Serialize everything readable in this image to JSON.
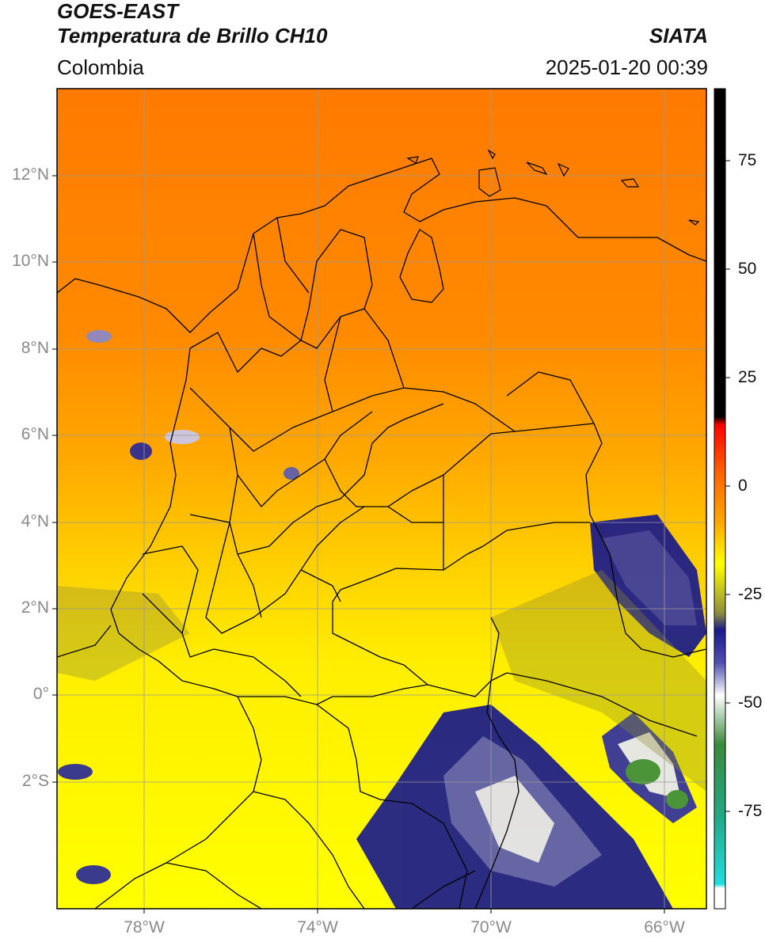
{
  "header": {
    "satellite": "GOES-EAST",
    "product": "Temperatura de Brillo CH10",
    "organization": "SIATA",
    "region": "Colombia",
    "datetime": "2025-01-20 00:39"
  },
  "map": {
    "lat_labels": [
      "12°N",
      "10°N",
      "8°N",
      "6°N",
      "4°N",
      "2°N",
      "0°",
      "2°S"
    ],
    "lon_labels": [
      "78°W",
      "74°W",
      "70°W",
      "66°W"
    ],
    "extent": {
      "lon_min": -80,
      "lon_max": -65,
      "lat_min": -5,
      "lat_max": 14
    },
    "gridlines": true
  },
  "colorbar": {
    "tick_labels": [
      "75",
      "50",
      "25",
      "0",
      "-25",
      "-50",
      "-75"
    ],
    "tick_values": [
      75,
      50,
      25,
      0,
      -25,
      -50,
      -75
    ],
    "range": [
      -95,
      90
    ],
    "colors": {
      "hot": "#000000",
      "warm": "#ff0000",
      "mid": "#ff9900",
      "cool": "#ffff00",
      "cloud": "#1a1a8c",
      "cold": "#ffffff",
      "coldest": "#22cccc"
    }
  }
}
